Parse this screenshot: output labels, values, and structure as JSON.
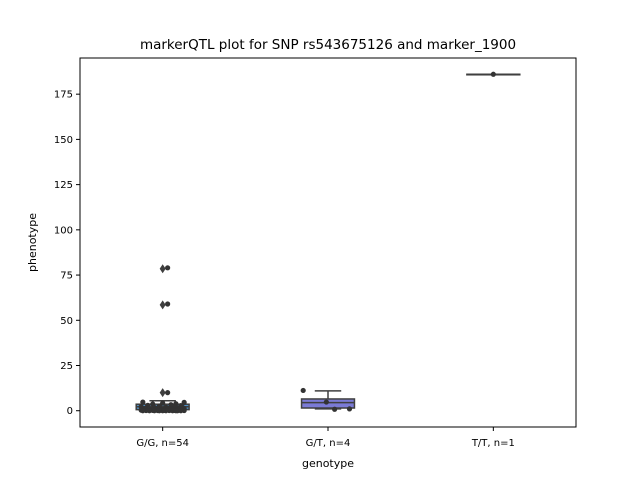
{
  "chart_data": {
    "type": "box",
    "title": "markerQTL plot for SNP rs543675126 and marker_1900",
    "xlabel": "genotype",
    "ylabel": "phenotype",
    "ylim": [
      -9,
      195
    ],
    "yticks": [
      0,
      25,
      50,
      75,
      100,
      125,
      150,
      175
    ],
    "categories": [
      "G/G, n=54",
      "G/T, n=4",
      "T/T, n=1"
    ],
    "grid": false,
    "legend": "none",
    "colors": {
      "box_gg": "#4f8fc4",
      "box_gt": "#7b7bd6",
      "box_edge": "#3f3f3f",
      "points": "#333333"
    },
    "boxes": [
      {
        "category": "G/G, n=54",
        "q1": 0.6,
        "median": 2.2,
        "q3": 3.6,
        "whisker_low": 0.0,
        "whisker_high": 5.5,
        "fliers": [
          10,
          58.5,
          78.5
        ]
      },
      {
        "category": "G/T, n=4",
        "q1": 1.5,
        "median": 4.5,
        "q3": 6.5,
        "whisker_low": 1.0,
        "whisker_high": 11.0,
        "fliers": []
      },
      {
        "category": "T/T, n=1",
        "q1": 186,
        "median": 186,
        "q3": 186,
        "whisker_low": 186,
        "whisker_high": 186,
        "fliers": []
      }
    ],
    "points": [
      {
        "category": "G/G, n=54",
        "offset": 0.03,
        "value": 79.0
      },
      {
        "category": "G/G, n=54",
        "offset": 0.03,
        "value": 59.0
      },
      {
        "category": "G/G, n=54",
        "offset": 0.03,
        "value": 10.0
      },
      {
        "category": "G/G, n=54",
        "offset": -0.12,
        "value": 4.8
      },
      {
        "category": "G/G, n=54",
        "offset": 0.13,
        "value": 4.6
      },
      {
        "category": "G/G, n=54",
        "offset": 0.0,
        "value": 4.2
      },
      {
        "category": "G/G, n=54",
        "offset": 0.08,
        "value": 3.9
      },
      {
        "category": "G/G, n=54",
        "offset": -0.06,
        "value": 3.7
      },
      {
        "category": "G/G, n=54",
        "offset": 0.05,
        "value": 3.3
      },
      {
        "category": "G/G, n=54",
        "offset": -0.09,
        "value": 3.0
      },
      {
        "category": "G/G, n=54",
        "offset": 0.11,
        "value": 2.8
      },
      {
        "category": "G/G, n=54",
        "offset": -0.02,
        "value": 2.6
      },
      {
        "category": "G/G, n=54",
        "offset": 0.07,
        "value": 2.4
      },
      {
        "category": "G/G, n=54",
        "offset": -0.13,
        "value": 2.2
      },
      {
        "category": "G/G, n=54",
        "offset": 0.02,
        "value": 2.0
      },
      {
        "category": "G/G, n=54",
        "offset": 0.12,
        "value": 1.9
      },
      {
        "category": "G/G, n=54",
        "offset": -0.05,
        "value": 1.8
      },
      {
        "category": "G/G, n=54",
        "offset": 0.09,
        "value": 1.6
      },
      {
        "category": "G/G, n=54",
        "offset": -0.1,
        "value": 1.5
      },
      {
        "category": "G/G, n=54",
        "offset": 0.04,
        "value": 1.4
      },
      {
        "category": "G/G, n=54",
        "offset": -0.03,
        "value": 1.3
      },
      {
        "category": "G/G, n=54",
        "offset": 0.13,
        "value": 1.2
      },
      {
        "category": "G/G, n=54",
        "offset": -0.11,
        "value": 1.1
      },
      {
        "category": "G/G, n=54",
        "offset": 0.06,
        "value": 1.0
      },
      {
        "category": "G/G, n=54",
        "offset": -0.07,
        "value": 0.9
      },
      {
        "category": "G/G, n=54",
        "offset": 0.1,
        "value": 0.8
      },
      {
        "category": "G/G, n=54",
        "offset": 0.0,
        "value": 0.8
      },
      {
        "category": "G/G, n=54",
        "offset": -0.12,
        "value": 0.7
      },
      {
        "category": "G/G, n=54",
        "offset": 0.08,
        "value": 0.6
      },
      {
        "category": "G/G, n=54",
        "offset": -0.04,
        "value": 0.6
      },
      {
        "category": "G/G, n=54",
        "offset": 0.03,
        "value": 0.5
      },
      {
        "category": "G/G, n=54",
        "offset": 0.12,
        "value": 0.5
      },
      {
        "category": "G/G, n=54",
        "offset": -0.09,
        "value": 0.4
      },
      {
        "category": "G/G, n=54",
        "offset": 0.05,
        "value": 0.4
      },
      {
        "category": "G/G, n=54",
        "offset": -0.01,
        "value": 0.3
      },
      {
        "category": "G/G, n=54",
        "offset": 0.1,
        "value": 0.3
      },
      {
        "category": "G/G, n=54",
        "offset": -0.13,
        "value": 0.3
      },
      {
        "category": "G/G, n=54",
        "offset": 0.07,
        "value": 0.2
      },
      {
        "category": "G/G, n=54",
        "offset": -0.06,
        "value": 0.2
      },
      {
        "category": "G/G, n=54",
        "offset": 0.01,
        "value": 0.2
      },
      {
        "category": "G/G, n=54",
        "offset": 0.13,
        "value": 0.1
      },
      {
        "category": "G/G, n=54",
        "offset": -0.1,
        "value": 0.1
      },
      {
        "category": "G/G, n=54",
        "offset": 0.04,
        "value": 0.1
      },
      {
        "category": "G/G, n=54",
        "offset": -0.03,
        "value": 0.1
      },
      {
        "category": "G/G, n=54",
        "offset": 0.09,
        "value": 0.0
      },
      {
        "category": "G/G, n=54",
        "offset": -0.08,
        "value": 0.0
      },
      {
        "category": "G/G, n=54",
        "offset": 0.02,
        "value": 0.0
      },
      {
        "category": "G/G, n=54",
        "offset": 0.11,
        "value": 0.0
      },
      {
        "category": "G/G, n=54",
        "offset": -0.12,
        "value": 0.0
      },
      {
        "category": "G/G, n=54",
        "offset": 0.06,
        "value": 0.0
      },
      {
        "category": "G/G, n=54",
        "offset": -0.05,
        "value": 0.0
      },
      {
        "category": "G/G, n=54",
        "offset": 0.0,
        "value": 0.0
      },
      {
        "category": "G/G, n=54",
        "offset": 0.08,
        "value": 0.0
      },
      {
        "category": "G/G, n=54",
        "offset": -0.02,
        "value": 0.0
      },
      {
        "category": "G/T, n=4",
        "offset": -0.15,
        "value": 11.2
      },
      {
        "category": "G/T, n=4",
        "offset": -0.01,
        "value": 4.8
      },
      {
        "category": "G/T, n=4",
        "offset": 0.13,
        "value": 1.0
      },
      {
        "category": "G/T, n=4",
        "offset": 0.04,
        "value": 0.8
      },
      {
        "category": "T/T, n=1",
        "offset": 0.0,
        "value": 186
      }
    ]
  }
}
